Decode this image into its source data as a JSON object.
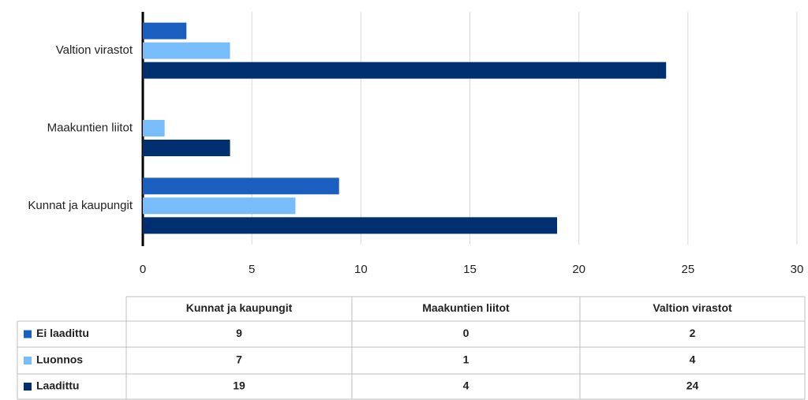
{
  "chart_data": {
    "type": "bar",
    "orientation": "horizontal",
    "categories": [
      "Kunnat ja kaupungit",
      "Maakuntien liitot",
      "Valtion virastot"
    ],
    "series": [
      {
        "name": "Ei laadittu",
        "color": "#1a5fc0",
        "values": [
          9,
          0,
          2
        ]
      },
      {
        "name": "Luonnos",
        "color": "#79bcfa",
        "values": [
          7,
          1,
          4
        ]
      },
      {
        "name": "Laadittu",
        "color": "#003070",
        "values": [
          19,
          4,
          24
        ]
      }
    ],
    "xlim": [
      0,
      30
    ],
    "xticks": [
      0,
      5,
      10,
      15,
      20,
      25,
      30
    ],
    "grid": true,
    "data_table": true
  }
}
